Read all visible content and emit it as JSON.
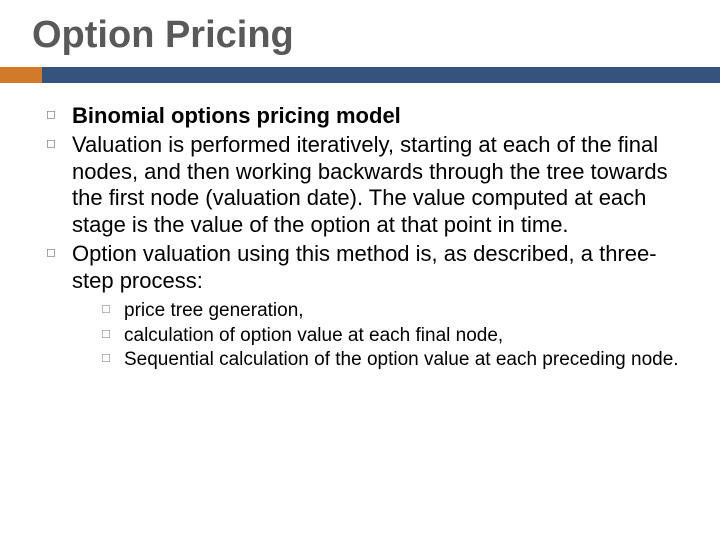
{
  "title": "Option Pricing",
  "colors": {
    "title_text": "#595959",
    "accent_left": "#d3792a",
    "accent_right": "#36537d",
    "body_text": "#000000",
    "bullet": "#7a7a7a",
    "background": "#ffffff"
  },
  "typography": {
    "title_fontsize": 38,
    "body_fontsize": 22,
    "sub_fontsize": 19,
    "font_family": "Arial"
  },
  "bullets": [
    {
      "text": "Binomial options pricing model",
      "bold": true
    },
    {
      "text": "Valuation is performed iteratively, starting at each of the final nodes, and then working backwards through the tree towards the first node (valuation date). The value computed at each stage is the value of the option at that point in time.",
      "bold": false
    },
    {
      "text": "Option valuation using this method is, as described, a three-step process:",
      "bold": false
    }
  ],
  "sub_bullets": [
    "price tree generation,",
    "calculation of option value at each final node,",
    "Sequential calculation of the option value at each preceding node."
  ]
}
